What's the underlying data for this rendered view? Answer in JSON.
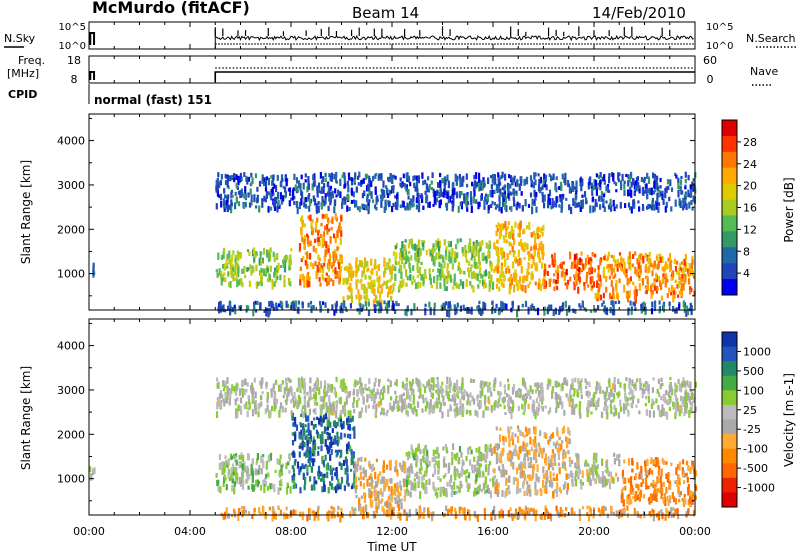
{
  "header": {
    "station": "McMurdo (fitACF)",
    "beam": "Beam 14",
    "date": "14/Feb/2010"
  },
  "status_panels": {
    "nsky_label": "N.Sky",
    "nsky_ticks": [
      "10^5",
      "10^0"
    ],
    "nsearch_label": "N.Search",
    "nsearch_ticks": [
      "10^5",
      "10^0"
    ],
    "freq_label_line1": "Freq.",
    "freq_label_line2": "[MHz]",
    "freq_ticks": [
      "18",
      "8"
    ],
    "nave_label": "Nave",
    "nave_ticks": [
      "60",
      "0"
    ],
    "cpid_label": "CPID",
    "cpid_text": "normal (fast) 151"
  },
  "x_axis": {
    "title": "Time UT",
    "tick_labels": [
      "00:00",
      "04:00",
      "08:00",
      "12:00",
      "16:00",
      "20:00",
      "00:00"
    ]
  },
  "power_colorbar": {
    "title": "Power [dB]",
    "tick_labels": [
      "28",
      "24",
      "20",
      "16",
      "12",
      "8",
      "4"
    ],
    "colors": [
      "#dd0000",
      "#ff3300",
      "#ff7700",
      "#ffaa00",
      "#ddcc00",
      "#aacc22",
      "#55bb55",
      "#339966",
      "#2266aa",
      "#2244bb",
      "#0000ee"
    ]
  },
  "velocity_colorbar": {
    "title": "Velocity [m s-1]",
    "tick_labels": [
      "1000",
      "500",
      "100",
      "25",
      "-25",
      "-100",
      "-500",
      "-1000"
    ],
    "colors": [
      "#1133aa",
      "#2255bb",
      "#228866",
      "#44aa44",
      "#88cc33",
      "#bbbbbb",
      "#aaaaaa",
      "#ffaa33",
      "#ff8800",
      "#ff6600",
      "#ee2200",
      "#dd0000"
    ]
  },
  "chart_data": {
    "type": "heatmap",
    "x_range_hours_ut": [
      0,
      24
    ],
    "y_range_km": [
      180,
      4600
    ],
    "ylabel": "Slant Range [km]",
    "xlabel": "Time UT",
    "y_tick_labels": [
      "1000",
      "2000",
      "3000",
      "4000"
    ],
    "panels": [
      {
        "name": "Power",
        "units": "dB",
        "colorbar_range": [
          0,
          30
        ],
        "blobs": [
          {
            "t_start": 0.0,
            "t_end": 0.2,
            "r_min": 1000,
            "r_max": 1300,
            "value": 6
          },
          {
            "t_start": 5.0,
            "t_end": 8.0,
            "r_min": 800,
            "r_max": 1600,
            "value": 14
          },
          {
            "t_start": 8.3,
            "t_end": 10.0,
            "r_min": 800,
            "r_max": 2400,
            "value": 22
          },
          {
            "t_start": 10.0,
            "t_end": 12.0,
            "r_min": 400,
            "r_max": 1400,
            "value": 18
          },
          {
            "t_start": 12.0,
            "t_end": 16.0,
            "r_min": 700,
            "r_max": 1800,
            "value": 14
          },
          {
            "t_start": 16.0,
            "t_end": 18.0,
            "r_min": 700,
            "r_max": 2200,
            "value": 20
          },
          {
            "t_start": 18.0,
            "t_end": 20.0,
            "r_min": 700,
            "r_max": 1500,
            "value": 24
          },
          {
            "t_start": 20.0,
            "t_end": 24.0,
            "r_min": 500,
            "r_max": 1500,
            "value": 22
          },
          {
            "t_start": 5.0,
            "t_end": 24.0,
            "r_min": 180,
            "r_max": 400,
            "value": 6
          },
          {
            "t_start": 5.0,
            "t_end": 24.0,
            "r_min": 2500,
            "r_max": 3300,
            "value": 5
          }
        ]
      },
      {
        "name": "Velocity",
        "units": "m s-1",
        "colorbar_range": [
          -1000,
          1000
        ],
        "blobs": [
          {
            "t_start": 0.0,
            "t_end": 0.2,
            "r_min": 1000,
            "r_max": 1300,
            "value": 50
          },
          {
            "t_start": 5.0,
            "t_end": 8.0,
            "r_min": 800,
            "r_max": 1600,
            "value": 200
          },
          {
            "t_start": 8.0,
            "t_end": 10.5,
            "r_min": 800,
            "r_max": 2500,
            "value": 700
          },
          {
            "t_start": 10.5,
            "t_end": 12.5,
            "r_min": 400,
            "r_max": 1500,
            "value": -200
          },
          {
            "t_start": 12.5,
            "t_end": 16.0,
            "r_min": 700,
            "r_max": 1800,
            "value": 100
          },
          {
            "t_start": 16.0,
            "t_end": 19.0,
            "r_min": 700,
            "r_max": 2200,
            "value": -150
          },
          {
            "t_start": 19.0,
            "t_end": 21.0,
            "r_min": 900,
            "r_max": 1600,
            "value": 20
          },
          {
            "t_start": 21.0,
            "t_end": 24.0,
            "r_min": 500,
            "r_max": 1500,
            "value": -400
          },
          {
            "t_start": 5.0,
            "t_end": 24.0,
            "r_min": 180,
            "r_max": 400,
            "value": -300
          },
          {
            "t_start": 5.0,
            "t_end": 24.0,
            "r_min": 2500,
            "r_max": 3300,
            "value": 80
          }
        ]
      }
    ],
    "grid": false,
    "legend": "right colorbars"
  }
}
